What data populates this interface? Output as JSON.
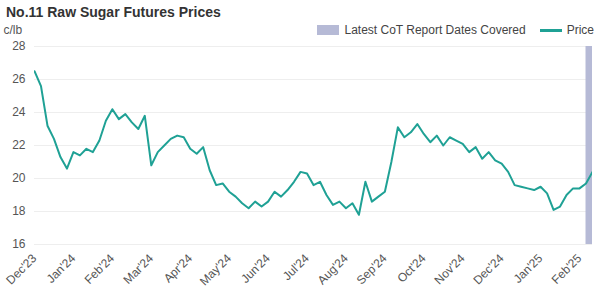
{
  "chart_data": {
    "type": "line",
    "title": "No.11 Raw Sugar Futures Prices",
    "y_label": "c/lb",
    "categories": [
      "Dec'23",
      null,
      null,
      null,
      null,
      null,
      "Jan'24",
      null,
      null,
      null,
      null,
      null,
      "Feb'24",
      null,
      null,
      null,
      null,
      null,
      "Mar'24",
      null,
      null,
      null,
      null,
      null,
      "Apr'24",
      null,
      null,
      null,
      null,
      null,
      "May'24",
      null,
      null,
      null,
      null,
      null,
      "Jun'24",
      null,
      null,
      null,
      null,
      null,
      "Jul'24",
      null,
      null,
      null,
      null,
      null,
      "Aug'24",
      null,
      null,
      null,
      null,
      null,
      "Sep'24",
      null,
      null,
      null,
      null,
      null,
      "Oct'24",
      null,
      null,
      null,
      null,
      null,
      "Nov'24",
      null,
      null,
      null,
      null,
      null,
      "Dec'24",
      null,
      null,
      null,
      null,
      null,
      "Jan'25",
      null,
      null,
      null,
      null,
      null,
      "Feb'25",
      null,
      null
    ],
    "series": [
      {
        "name": "Price",
        "color": "#1fa195",
        "values": [
          26.5,
          25.6,
          23.2,
          22.4,
          21.3,
          20.6,
          21.6,
          21.4,
          21.8,
          21.6,
          22.3,
          23.5,
          24.2,
          23.6,
          23.9,
          23.4,
          23.0,
          23.8,
          20.8,
          21.6,
          22.0,
          22.4,
          22.6,
          22.5,
          21.8,
          21.5,
          21.9,
          20.5,
          19.6,
          19.7,
          19.2,
          18.9,
          18.5,
          18.2,
          18.6,
          18.3,
          18.6,
          19.2,
          18.9,
          19.3,
          19.8,
          20.4,
          20.3,
          19.6,
          19.8,
          19.0,
          18.4,
          18.6,
          18.2,
          18.5,
          17.8,
          19.8,
          18.6,
          18.9,
          19.2,
          21.0,
          23.1,
          22.5,
          22.8,
          23.3,
          22.7,
          22.2,
          22.6,
          22.0,
          22.5,
          22.3,
          22.1,
          21.6,
          21.9,
          21.2,
          21.6,
          21.1,
          20.9,
          20.4,
          19.6,
          19.5,
          19.4,
          19.3,
          19.5,
          19.1,
          18.1,
          18.3,
          19.0,
          19.4,
          19.4,
          19.7,
          20.4
        ]
      }
    ],
    "highlight": {
      "name": "Latest CoT Report Dates Covered",
      "color": "#b6bad6",
      "start": 85,
      "end": 86
    },
    "ylim": [
      16,
      28
    ],
    "yticks": [
      16,
      18,
      20,
      22,
      24,
      26,
      28
    ],
    "grid": true,
    "legend": "top-right"
  }
}
